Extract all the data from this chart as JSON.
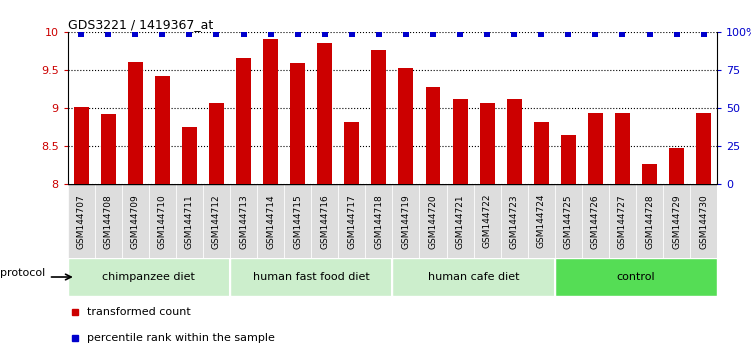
{
  "title": "GDS3221 / 1419367_at",
  "samples": [
    "GSM144707",
    "GSM144708",
    "GSM144709",
    "GSM144710",
    "GSM144711",
    "GSM144712",
    "GSM144713",
    "GSM144714",
    "GSM144715",
    "GSM144716",
    "GSM144717",
    "GSM144718",
    "GSM144719",
    "GSM144720",
    "GSM144721",
    "GSM144722",
    "GSM144723",
    "GSM144724",
    "GSM144725",
    "GSM144726",
    "GSM144727",
    "GSM144728",
    "GSM144729",
    "GSM144730"
  ],
  "bar_values": [
    9.01,
    8.92,
    9.6,
    9.42,
    8.75,
    9.07,
    9.65,
    9.91,
    9.59,
    9.86,
    8.81,
    9.76,
    9.53,
    9.28,
    9.12,
    9.06,
    9.12,
    8.82,
    8.65,
    8.93,
    8.93,
    8.27,
    8.47,
    8.93
  ],
  "dot_values": [
    9.97,
    9.97,
    9.97,
    9.97,
    9.97,
    9.97,
    9.97,
    9.97,
    9.97,
    9.97,
    9.97,
    9.97,
    9.97,
    9.97,
    9.97,
    9.97,
    9.97,
    9.97,
    9.97,
    9.97,
    9.97,
    9.97,
    9.97,
    9.97
  ],
  "bar_color": "#CC0000",
  "dot_color": "#0000CC",
  "ylim": [
    8.0,
    10.0
  ],
  "yticks_left": [
    8.0,
    8.5,
    9.0,
    9.5,
    10.0
  ],
  "yticks_right_labels": [
    "0",
    "25",
    "50",
    "75",
    "100%"
  ],
  "yticks_right_pos": [
    8.0,
    8.5,
    9.0,
    9.5,
    10.0
  ],
  "ylabel_left_color": "#CC0000",
  "ylabel_right_color": "#0000CC",
  "groups": [
    {
      "label": "chimpanzee diet",
      "start": 0,
      "end": 6,
      "color": "#CCEECC"
    },
    {
      "label": "human fast food diet",
      "start": 6,
      "end": 12,
      "color": "#CCEECC"
    },
    {
      "label": "human cafe diet",
      "start": 12,
      "end": 18,
      "color": "#CCEECC"
    },
    {
      "label": "control",
      "start": 18,
      "end": 24,
      "color": "#55DD55"
    }
  ],
  "protocol_label": "protocol",
  "legend_items": [
    {
      "label": "transformed count",
      "color": "#CC0000"
    },
    {
      "label": "percentile rank within the sample",
      "color": "#0000CC"
    }
  ],
  "tick_bg_color": "#DDDDDD",
  "tick_label_fontsize": 6.5,
  "bar_width": 0.55
}
